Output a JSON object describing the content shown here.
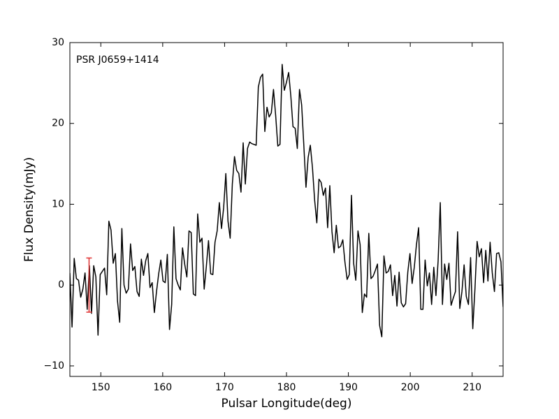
{
  "chart_data": {
    "type": "line",
    "annotation": "PSR J0659+1414",
    "xlabel": "Pulsar Longitude(deg)",
    "ylabel": "Flux Density(mJy)",
    "xlim": [
      145,
      215
    ],
    "ylim": [
      -11.3,
      30
    ],
    "xticks": [
      150,
      160,
      170,
      180,
      190,
      200,
      210
    ],
    "yticks": [
      {
        "value": -10,
        "label": "−10"
      },
      0,
      10,
      20,
      30
    ],
    "x": [
      145,
      145.35,
      145.7,
      146.05,
      146.4,
      146.75,
      147.1,
      147.45,
      147.8,
      148.15,
      148.5,
      148.85,
      149.2,
      149.55,
      149.9,
      150.25,
      150.6,
      150.95,
      151.3,
      151.65,
      152,
      152.35,
      152.7,
      153.05,
      153.4,
      153.75,
      154.1,
      154.45,
      154.8,
      155.15,
      155.5,
      155.85,
      156.2,
      156.55,
      156.9,
      157.25,
      157.6,
      157.95,
      158.3,
      158.65,
      159,
      159.35,
      159.7,
      160.05,
      160.4,
      160.75,
      161.1,
      161.45,
      161.8,
      162.15,
      162.5,
      162.85,
      163.2,
      163.55,
      163.9,
      164.25,
      164.6,
      164.95,
      165.3,
      165.65,
      166,
      166.35,
      166.7,
      167.05,
      167.4,
      167.75,
      168.1,
      168.45,
      168.8,
      169.15,
      169.5,
      169.85,
      170.2,
      170.55,
      170.9,
      171.25,
      171.6,
      171.95,
      172.3,
      172.65,
      173,
      173.35,
      173.7,
      174.05,
      174.4,
      174.75,
      175.1,
      175.45,
      175.8,
      176.15,
      176.5,
      176.85,
      177.2,
      177.55,
      177.9,
      178.25,
      178.6,
      178.95,
      179.3,
      179.65,
      180,
      180.35,
      180.7,
      181.05,
      181.4,
      181.75,
      182.1,
      182.45,
      182.8,
      183.15,
      183.5,
      183.85,
      184.2,
      184.55,
      184.9,
      185.25,
      185.6,
      185.95,
      186.3,
      186.65,
      187,
      187.35,
      187.7,
      188.05,
      188.4,
      188.75,
      189.1,
      189.45,
      189.8,
      190.15,
      190.5,
      190.85,
      191.2,
      191.55,
      191.9,
      192.25,
      192.6,
      192.95,
      193.3,
      193.65,
      194,
      194.35,
      194.7,
      195.05,
      195.4,
      195.75,
      196.1,
      196.45,
      196.8,
      197.15,
      197.5,
      197.85,
      198.2,
      198.55,
      198.9,
      199.25,
      199.6,
      199.95,
      200.3,
      200.65,
      201,
      201.35,
      201.7,
      202.05,
      202.4,
      202.75,
      203.1,
      203.45,
      203.8,
      204.15,
      204.5,
      204.85,
      205.2,
      205.55,
      205.9,
      206.25,
      206.6,
      206.95,
      207.3,
      207.65,
      208,
      208.35,
      208.7,
      209.05,
      209.4,
      209.75,
      210.1,
      210.45,
      210.8,
      211.15,
      211.5,
      211.85,
      212.2,
      212.55,
      212.9,
      213.25,
      213.6,
      213.95,
      214.3,
      214.65,
      215
    ],
    "series": [
      {
        "color": "#000000",
        "values": [
          1.5,
          -5.2,
          3.3,
          0.8,
          0.6,
          -1.5,
          -0.5,
          1.5,
          -3,
          2.4,
          -3.5,
          2.4,
          1,
          -6.2,
          1.3,
          1.7,
          2.1,
          -1.2,
          7.9,
          6.8,
          2.7,
          3.9,
          -2,
          -4.6,
          7,
          0,
          -1,
          -0.5,
          5.1,
          1.8,
          2.3,
          -0.8,
          -1.4,
          3.2,
          1.2,
          3,
          3.9,
          -0.3,
          0.3,
          -3.4,
          -0.8,
          1.4,
          3.1,
          0.5,
          0.3,
          3.8,
          -5.5,
          -2.4,
          7.2,
          0.8,
          0,
          -0.6,
          4.6,
          2.6,
          1,
          6.7,
          6.5,
          -1.1,
          -1.3,
          8.8,
          5.3,
          5.8,
          -0.5,
          2.3,
          5.5,
          1.4,
          1.3,
          5.3,
          6.7,
          10.2,
          7,
          9.6,
          13.8,
          7.9,
          5.8,
          12.5,
          15.9,
          14.2,
          13.8,
          11.5,
          17.6,
          12.5,
          16.9,
          17.7,
          17.5,
          17.4,
          17.3,
          24.5,
          25.7,
          26.1,
          19,
          22,
          20.8,
          21.3,
          24.2,
          21,
          17.2,
          17.4,
          27.3,
          24.1,
          25.1,
          26.3,
          23.4,
          19.6,
          19.4,
          16.9,
          24.2,
          22.3,
          17.3,
          12.1,
          15.8,
          17.3,
          14.5,
          10.5,
          7.7,
          13.1,
          12.7,
          11.1,
          12,
          7.1,
          12.3,
          6.6,
          4,
          7.4,
          4.6,
          4.8,
          5.6,
          2.8,
          0.7,
          1.3,
          11.1,
          2.7,
          0.6,
          6.7,
          5,
          -3.4,
          -1.1,
          -1.5,
          6.4,
          0.8,
          1.1,
          1.8,
          2.6,
          -5,
          -6.4,
          3.6,
          1.5,
          1.7,
          2.5,
          -1.3,
          1.2,
          -2.6,
          1.6,
          -2.2,
          -2.7,
          -2.3,
          1.6,
          3.9,
          0.2,
          2.2,
          5,
          7.1,
          -3,
          -3,
          3.1,
          -0.1,
          1.5,
          -2.4,
          2.2,
          -1.3,
          3,
          10.2,
          -2.4,
          2.6,
          0.7,
          2.7,
          -2.5,
          -1.6,
          -0.8,
          6.6,
          -2.9,
          -0.8,
          2.5,
          -1.4,
          -2.4,
          3.4,
          -5.4,
          -0.5,
          5.4,
          3.5,
          4.5,
          0.3,
          4.3,
          0.5,
          5.3,
          1.5,
          -0.8,
          3.9,
          4,
          2.9,
          -2.7
        ]
      }
    ],
    "error_bar": {
      "x": 148.1,
      "y": 0,
      "yerr": 3.35,
      "color": "#e03030"
    }
  }
}
